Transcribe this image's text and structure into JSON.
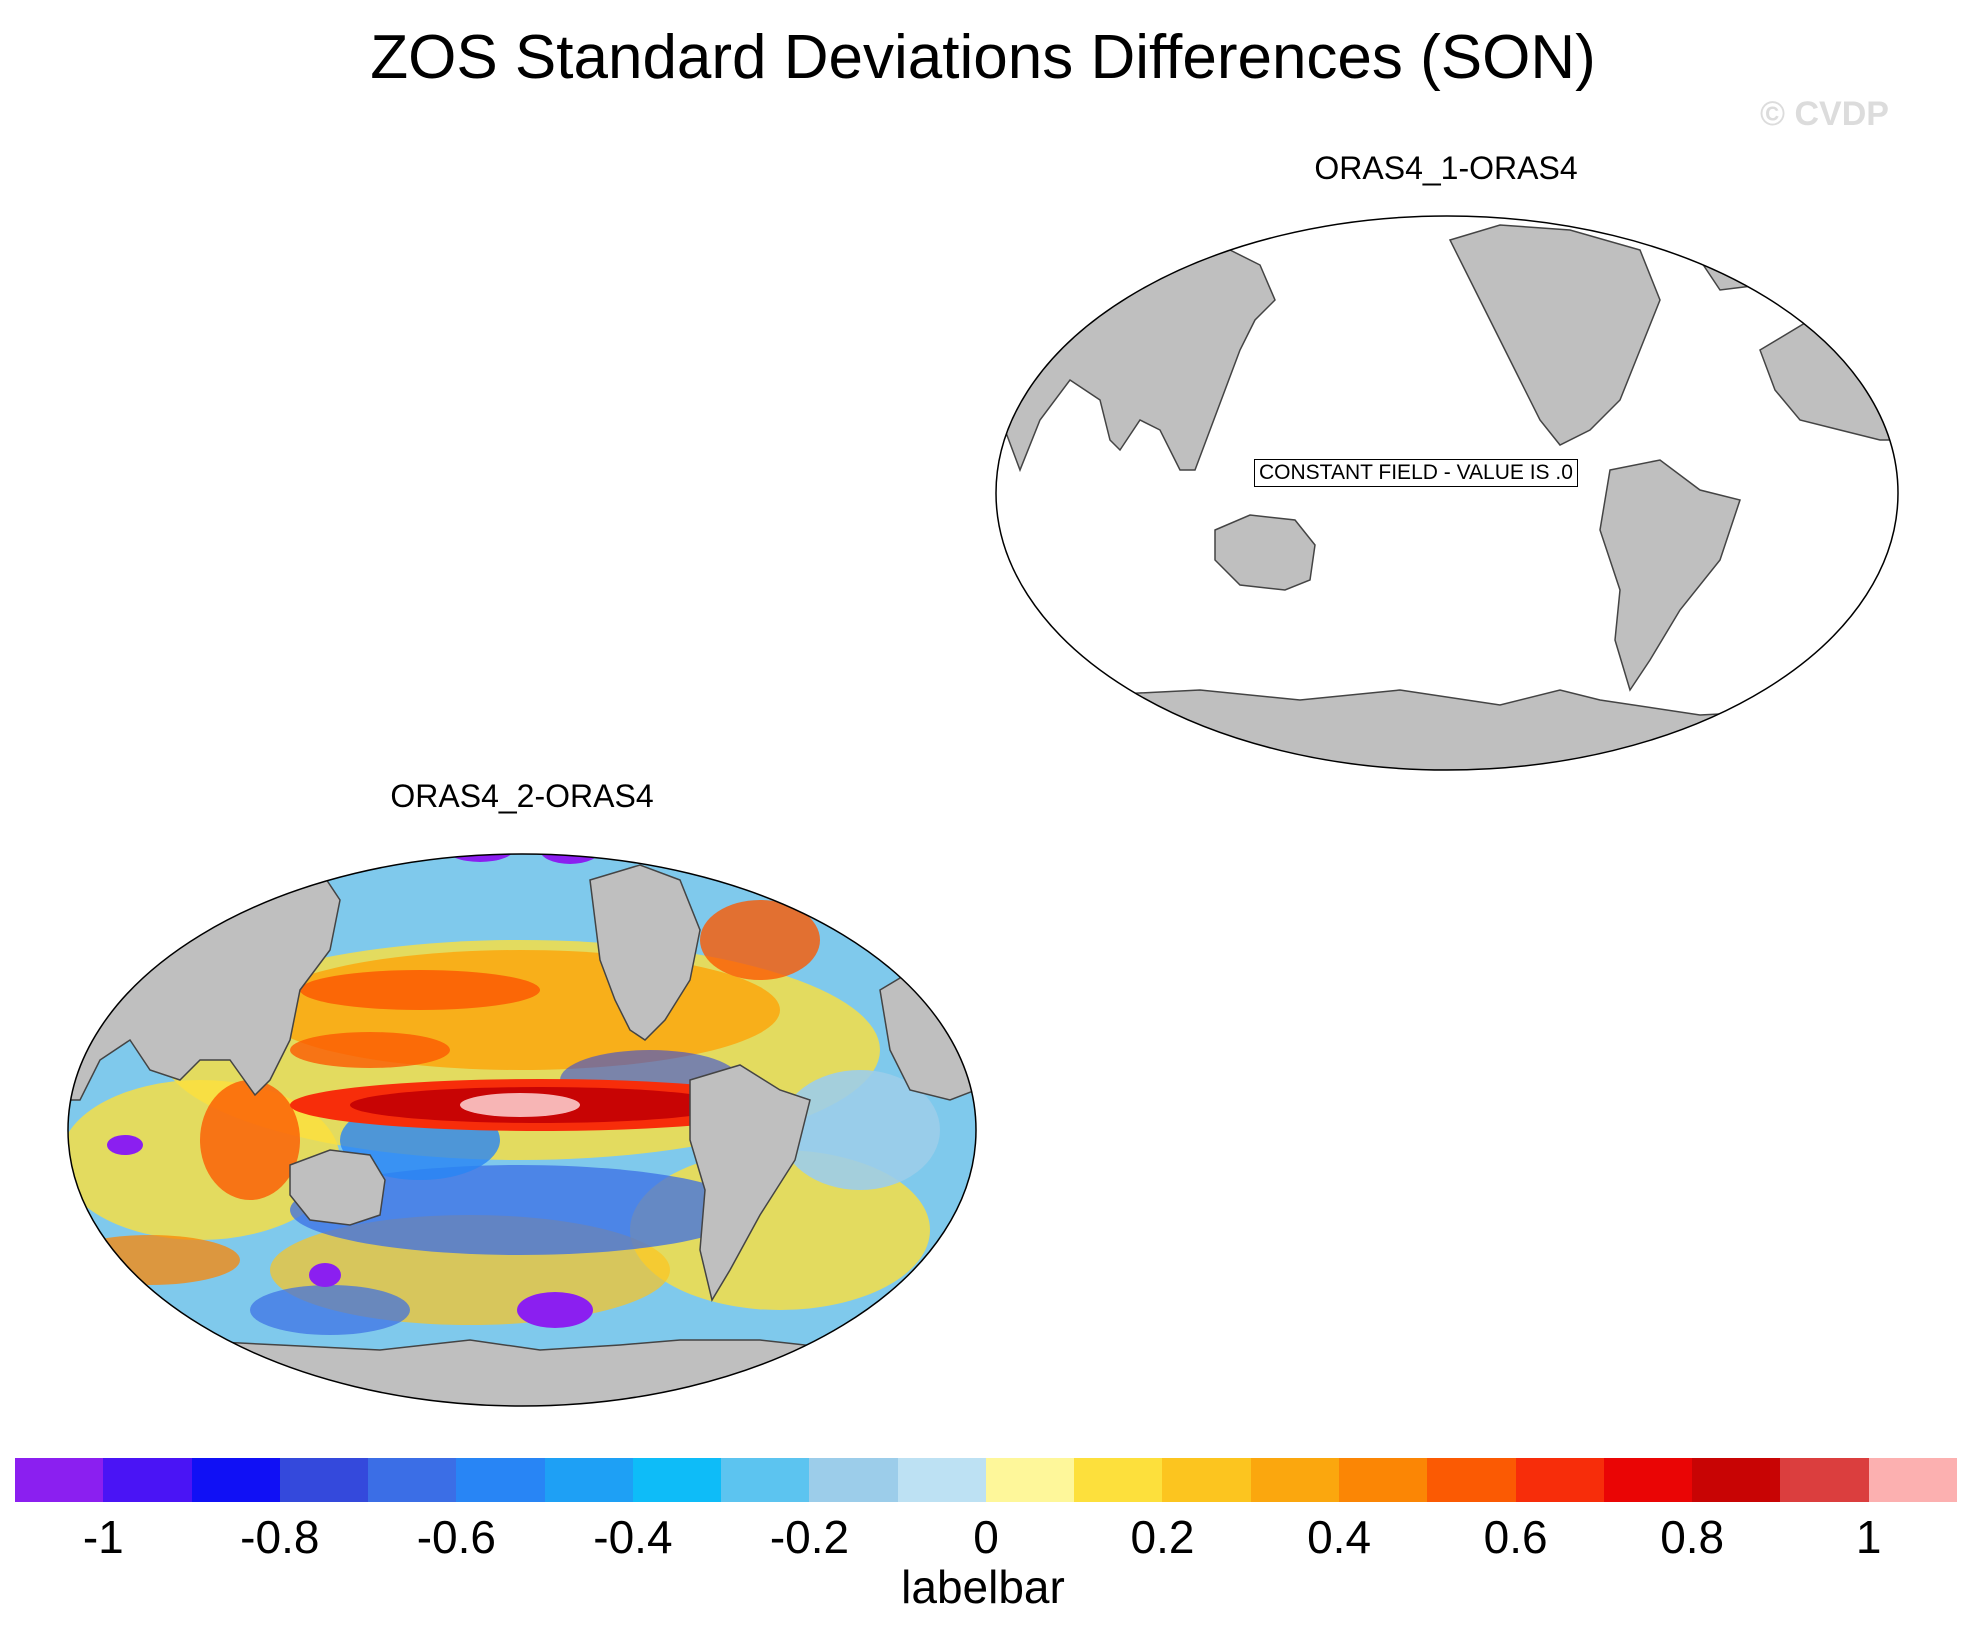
{
  "title": "ZOS Standard Deviations Differences (SON)",
  "watermark": "© CVDP",
  "panels": [
    {
      "title": "ORAS4_1-ORAS4",
      "annotation": "CONSTANT FIELD - VALUE IS .0"
    },
    {
      "title": "ORAS4_2-ORAS4"
    }
  ],
  "labelbar": {
    "title": "labelbar",
    "ticks": [
      "-1",
      "-0.8",
      "-0.6",
      "-0.4",
      "-0.2",
      "0",
      "0.2",
      "0.4",
      "0.6",
      "0.8",
      "1"
    ],
    "colors": [
      "#8b1ff0",
      "#4a14f5",
      "#1010f5",
      "#3449dc",
      "#3b6ee6",
      "#2885f5",
      "#1ea0f5",
      "#0ebcf8",
      "#5cc4f0",
      "#9ccdea",
      "#bde1f3",
      "#fef79a",
      "#fde03c",
      "#fcc51f",
      "#fba70e",
      "#fb8605",
      "#fb5a03",
      "#f72d0a",
      "#ea0505",
      "#c80404",
      "#db3e3e",
      "#fcb0b0"
    ]
  },
  "colors": {
    "land": "#bfbfbf",
    "coast": "#444444",
    "ocean_blank": "#ffffff",
    "anomaly_highlight": "#f7b5b5"
  }
}
